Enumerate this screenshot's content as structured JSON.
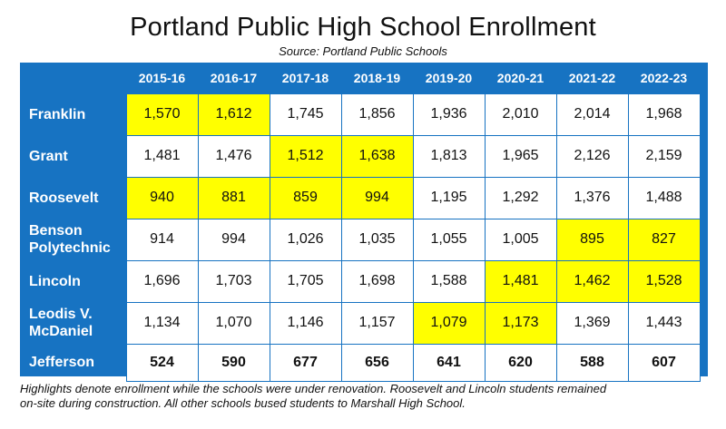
{
  "header": {
    "title": "Portland Public High School Enrollment",
    "subtitle": "Source: Portland Public Schools"
  },
  "chart_data": {
    "type": "table",
    "title": "Portland Public High School Enrollment",
    "subtitle": "Source: Portland Public Schools",
    "columns": [
      "2015-16",
      "2016-17",
      "2017-18",
      "2018-19",
      "2019-20",
      "2020-21",
      "2021-22",
      "2022-23"
    ],
    "rows": [
      {
        "school_lines": [
          "Franklin"
        ],
        "values": [
          "1,570",
          "1,612",
          "1,745",
          "1,856",
          "1,936",
          "2,010",
          "2,014",
          "1,968"
        ],
        "highlight": [
          true,
          true,
          false,
          false,
          false,
          false,
          false,
          false
        ]
      },
      {
        "school_lines": [
          "Grant"
        ],
        "values": [
          "1,481",
          "1,476",
          "1,512",
          "1,638",
          "1,813",
          "1,965",
          "2,126",
          "2,159"
        ],
        "highlight": [
          false,
          false,
          true,
          true,
          false,
          false,
          false,
          false
        ]
      },
      {
        "school_lines": [
          "Roosevelt"
        ],
        "values": [
          "940",
          "881",
          "859",
          "994",
          "1,195",
          "1,292",
          "1,376",
          "1,488"
        ],
        "highlight": [
          true,
          true,
          true,
          true,
          false,
          false,
          false,
          false
        ]
      },
      {
        "school_lines": [
          "Benson",
          "Polytechnic"
        ],
        "values": [
          "914",
          "994",
          "1,026",
          "1,035",
          "1,055",
          "1,005",
          "895",
          "827"
        ],
        "highlight": [
          false,
          false,
          false,
          false,
          false,
          false,
          true,
          true
        ]
      },
      {
        "school_lines": [
          "Lincoln"
        ],
        "values": [
          "1,696",
          "1,703",
          "1,705",
          "1,698",
          "1,588",
          "1,481",
          "1,462",
          "1,528"
        ],
        "highlight": [
          false,
          false,
          false,
          false,
          false,
          true,
          true,
          true
        ]
      },
      {
        "school_lines": [
          "Leodis V.",
          "McDaniel"
        ],
        "values": [
          "1,134",
          "1,070",
          "1,146",
          "1,157",
          "1,079",
          "1,173",
          "1,369",
          "1,443"
        ],
        "highlight": [
          false,
          false,
          false,
          false,
          true,
          true,
          false,
          false
        ]
      },
      {
        "school_lines": [
          "Jefferson"
        ],
        "values": [
          "524",
          "590",
          "677",
          "656",
          "641",
          "620",
          "588",
          "607"
        ],
        "highlight": [
          false,
          false,
          false,
          false,
          false,
          false,
          false,
          false
        ]
      }
    ],
    "highlight_color": "#ffff00",
    "panel_color": "#1773c2"
  },
  "footnote": {
    "line1": "Highlights denote enrollment while the schools were under renovation. Roosevelt and Lincoln students remained",
    "line2": "on-site during construction. All other schools bused students to Marshall High School."
  }
}
